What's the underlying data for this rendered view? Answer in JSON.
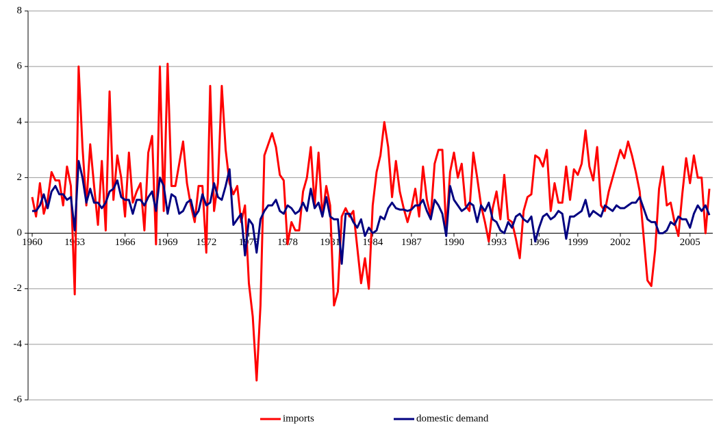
{
  "chart_data": {
    "type": "line",
    "categories": [
      "1960",
      null,
      null,
      null,
      null,
      null,
      null,
      null,
      null,
      null,
      null,
      "1963",
      null,
      null,
      null,
      null,
      null,
      null,
      null,
      null,
      null,
      null,
      null,
      null,
      "1966",
      null,
      null,
      null,
      null,
      null,
      null,
      null,
      null,
      null,
      null,
      "1969",
      null,
      null,
      null,
      null,
      null,
      null,
      null,
      null,
      null,
      "1972",
      null,
      null,
      null,
      null,
      null,
      null,
      null,
      null,
      null,
      null,
      "1975",
      null,
      null,
      null,
      null,
      null,
      null,
      null,
      null,
      null,
      "1978",
      null,
      null,
      null,
      null,
      null,
      null,
      null,
      null,
      null,
      null,
      "1981",
      null,
      null,
      null,
      null,
      null,
      null,
      null,
      null,
      null,
      null,
      "1984",
      null,
      null,
      null,
      null,
      null,
      null,
      null,
      null,
      null,
      "1987",
      null,
      null,
      null,
      null,
      null,
      null,
      null,
      null,
      null,
      null,
      "1990",
      null,
      null,
      null,
      null,
      null,
      null,
      null,
      null,
      null,
      null,
      "1993",
      null,
      null,
      null,
      null,
      null,
      null,
      null,
      null,
      null,
      null,
      "1996",
      null,
      null,
      null,
      null,
      null,
      null,
      null,
      null,
      null,
      "1999",
      null,
      null,
      null,
      null,
      null,
      null,
      null,
      null,
      null,
      null,
      "2002",
      null,
      null,
      null,
      null,
      null,
      null,
      null,
      null,
      null,
      null,
      null,
      null,
      null,
      null,
      null,
      null,
      null,
      "2005",
      null,
      null,
      null,
      null,
      null
    ],
    "series": [
      {
        "name": "imports",
        "color": "#ff0000",
        "values": [
          1.3,
          0.6,
          1.8,
          0.7,
          1.2,
          2.2,
          1.9,
          1.9,
          1.0,
          2.4,
          1.7,
          -2.2,
          6.0,
          3.1,
          1.0,
          3.2,
          1.7,
          0.3,
          2.6,
          0.1,
          5.1,
          1.2,
          2.8,
          2.0,
          0.6,
          2.9,
          1.1,
          1.5,
          1.8,
          0.1,
          2.9,
          3.5,
          -0.4,
          6.0,
          0.8,
          6.1,
          1.7,
          1.7,
          2.5,
          3.3,
          1.8,
          1.0,
          0.4,
          1.7,
          1.7,
          -0.7,
          5.3,
          0.8,
          1.8,
          5.3,
          3.0,
          1.8,
          1.4,
          1.7,
          0.4,
          1.0,
          -1.8,
          -3.0,
          -5.3,
          -2.6,
          2.8,
          3.2,
          3.6,
          3.1,
          2.1,
          1.9,
          -0.4,
          0.4,
          0.1,
          0.1,
          1.5,
          2.0,
          3.1,
          1.0,
          2.9,
          0.6,
          1.7,
          1.0,
          -2.6,
          -2.1,
          0.6,
          0.9,
          0.6,
          0.8,
          -0.5,
          -1.8,
          -0.9,
          -2.0,
          1.0,
          2.2,
          2.8,
          4.0,
          3.1,
          1.3,
          2.6,
          1.5,
          0.9,
          0.4,
          0.9,
          1.6,
          0.6,
          2.4,
          1.2,
          0.6,
          2.5,
          3.0,
          3.0,
          0.1,
          2.2,
          2.9,
          2.0,
          2.5,
          1.0,
          0.8,
          2.9,
          2.0,
          1.0,
          0.4,
          -0.3,
          0.9,
          1.5,
          0.5,
          2.1,
          0.5,
          0.4,
          -0.2,
          -0.9,
          0.8,
          1.3,
          1.4,
          2.8,
          2.7,
          2.4,
          3.0,
          0.8,
          1.8,
          1.1,
          1.1,
          2.4,
          1.2,
          2.3,
          2.1,
          2.5,
          3.7,
          2.4,
          1.9,
          3.1,
          1.0,
          0.8,
          1.5,
          2.0,
          2.5,
          3.0,
          2.7,
          3.3,
          2.8,
          2.2,
          1.5,
          -0.1,
          -1.7,
          -1.9,
          -0.6,
          1.6,
          2.4,
          1.0,
          1.1,
          0.4,
          -0.1,
          1.4,
          2.7,
          1.8,
          2.8,
          2.0,
          2.0,
          0.0,
          1.6
        ]
      },
      {
        "name": "domestic demand",
        "color": "#000080",
        "values": [
          0.8,
          0.8,
          1.0,
          1.4,
          0.9,
          1.5,
          1.7,
          1.4,
          1.4,
          1.2,
          1.3,
          0.1,
          2.6,
          2.0,
          1.1,
          1.6,
          1.1,
          1.1,
          0.9,
          1.1,
          1.5,
          1.6,
          1.9,
          1.3,
          1.2,
          1.2,
          0.7,
          1.2,
          1.2,
          1.0,
          1.3,
          1.5,
          0.8,
          2.0,
          1.7,
          0.7,
          1.4,
          1.3,
          0.7,
          0.8,
          1.1,
          1.2,
          0.6,
          0.8,
          1.4,
          1.0,
          1.1,
          1.8,
          1.3,
          1.2,
          1.7,
          2.3,
          0.3,
          0.5,
          0.7,
          -0.8,
          0.5,
          0.3,
          -0.7,
          0.5,
          0.8,
          1.0,
          1.0,
          1.2,
          0.8,
          0.7,
          1.0,
          0.9,
          0.7,
          0.8,
          1.1,
          0.8,
          1.6,
          0.9,
          1.1,
          0.6,
          1.3,
          0.6,
          0.5,
          0.5,
          -1.1,
          0.7,
          0.7,
          0.4,
          0.2,
          0.5,
          -0.1,
          0.2,
          0.0,
          0.1,
          0.6,
          0.5,
          0.9,
          1.1,
          0.9,
          0.85,
          0.85,
          0.8,
          0.85,
          1.0,
          1.0,
          1.2,
          0.8,
          0.5,
          1.2,
          1.0,
          0.7,
          -0.1,
          1.7,
          1.2,
          1.0,
          0.8,
          0.9,
          1.1,
          1.0,
          0.4,
          1.0,
          0.8,
          1.1,
          0.5,
          0.4,
          0.1,
          0.0,
          0.4,
          0.2,
          0.6,
          0.7,
          0.5,
          0.4,
          0.6,
          -0.3,
          0.2,
          0.6,
          0.7,
          0.5,
          0.6,
          0.8,
          0.7,
          -0.2,
          0.6,
          0.6,
          0.7,
          0.8,
          1.2,
          0.6,
          0.8,
          0.7,
          0.6,
          1.0,
          0.9,
          0.8,
          1.0,
          0.9,
          0.9,
          1.0,
          1.1,
          1.1,
          1.3,
          0.9,
          0.5,
          0.4,
          0.4,
          0.0,
          0.0,
          0.1,
          0.4,
          0.3,
          0.6,
          0.5,
          0.5,
          0.2,
          0.7,
          1.0,
          0.8,
          1.0,
          0.65
        ]
      }
    ],
    "ylim": [
      -6,
      8
    ],
    "yticks": [
      -6,
      -4,
      -2,
      0,
      2,
      4,
      6,
      8
    ],
    "grid": true,
    "legend": "bottom"
  }
}
